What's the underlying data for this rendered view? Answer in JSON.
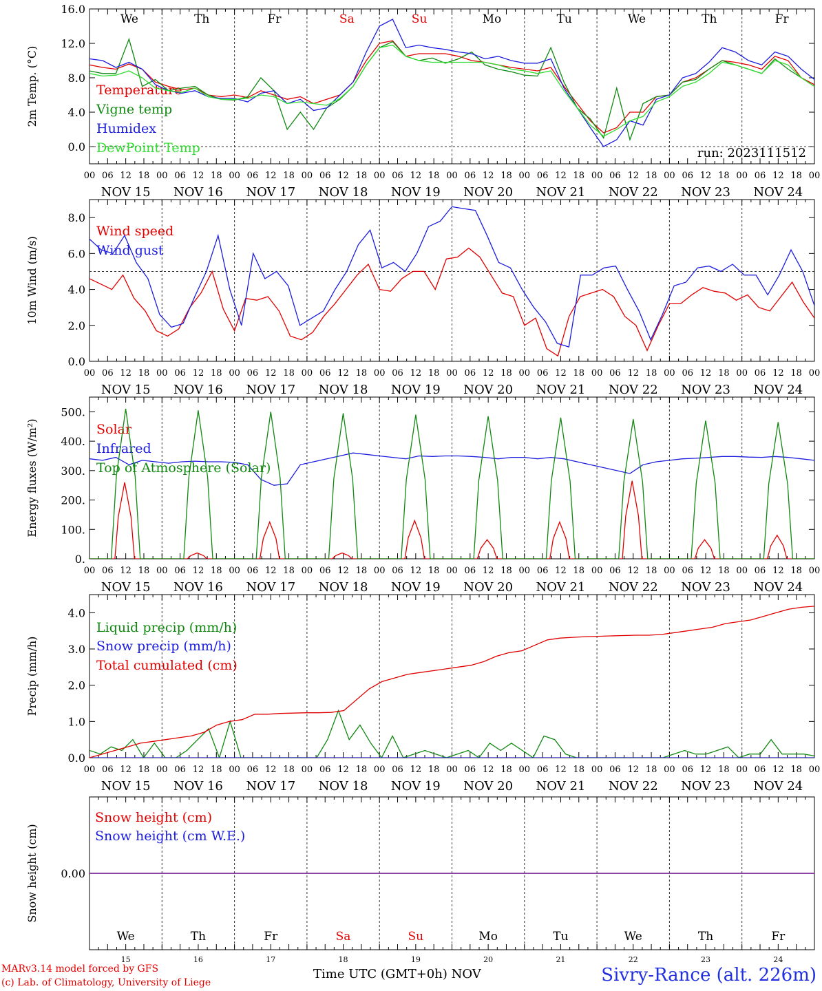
{
  "chart_data": [
    {
      "type": "line",
      "ylabel": "2m Temp. (°C)",
      "ylim": [
        -2.0,
        16.0
      ],
      "yticks": [
        "0.0",
        "4.0",
        "8.0",
        "12.0",
        "16.0"
      ],
      "yticks_values": [
        0,
        4,
        8,
        12,
        16
      ],
      "ref_line": 0,
      "annotation": "run: 2023111512",
      "weekday_labels": [
        "We",
        "Th",
        "Fr",
        "Sa",
        "Su",
        "Mo",
        "Tu",
        "We",
        "Th",
        "Fr"
      ],
      "series": [
        {
          "name": "Temperature",
          "color": "#e00000",
          "values": [
            9.5,
            9.2,
            9.0,
            9.6,
            9.0,
            7.5,
            7.0,
            6.6,
            6.8,
            6.0,
            5.8,
            6.0,
            5.7,
            6.5,
            6.0,
            5.5,
            5.8,
            5.0,
            5.5,
            6.0,
            7.5,
            10.0,
            12.0,
            12.3,
            10.5,
            10.8,
            10.8,
            10.8,
            10.5,
            10.0,
            9.8,
            9.5,
            9.2,
            9.0,
            8.8,
            9.2,
            7.0,
            5.0,
            3.0,
            1.6,
            2.2,
            4.0,
            4.0,
            5.8,
            6.0,
            7.5,
            8.0,
            9.0,
            10.0,
            9.8,
            9.5,
            9.0,
            10.5,
            10.0,
            8.0,
            7.2
          ]
        },
        {
          "name": "Vigne temp",
          "color": "#108810",
          "values": [
            8.8,
            8.5,
            8.5,
            12.5,
            7.0,
            7.8,
            6.5,
            6.8,
            7.0,
            6.0,
            5.5,
            5.4,
            5.8,
            8.0,
            6.5,
            2.0,
            4.0,
            2.0,
            4.5,
            5.5,
            7.0,
            9.5,
            11.5,
            12.2,
            10.5,
            10.0,
            10.3,
            9.7,
            10.2,
            11.0,
            9.5,
            9.0,
            8.7,
            8.3,
            8.2,
            11.5,
            7.5,
            4.5,
            3.2,
            1.0,
            6.8,
            0.8,
            5.0,
            5.8,
            6.0,
            7.5,
            7.8,
            9.0,
            10.0,
            9.5,
            9.0,
            8.5,
            10.2,
            9.0,
            8.0,
            7.0
          ]
        },
        {
          "name": "Humidex",
          "color": "#1c1cdd",
          "values": [
            10.2,
            10.0,
            9.2,
            9.8,
            9.0,
            7.2,
            6.5,
            6.2,
            6.5,
            5.8,
            5.6,
            5.6,
            5.2,
            6.2,
            6.5,
            5.0,
            5.5,
            4.2,
            4.5,
            6.0,
            7.5,
            11.0,
            14.0,
            14.8,
            11.5,
            11.8,
            11.5,
            11.3,
            11.0,
            10.8,
            10.2,
            10.5,
            10.0,
            9.7,
            9.7,
            10.2,
            6.8,
            4.5,
            2.2,
            0.0,
            0.8,
            3.0,
            2.5,
            5.5,
            6.0,
            8.0,
            8.5,
            9.8,
            11.5,
            11.0,
            10.0,
            9.5,
            11.0,
            10.5,
            9.0,
            7.8
          ]
        },
        {
          "name": "DewPoint Temp",
          "color": "#30dd30",
          "values": [
            8.5,
            8.2,
            8.3,
            8.8,
            8.0,
            6.8,
            6.5,
            6.3,
            6.8,
            5.8,
            5.5,
            5.5,
            5.6,
            6.0,
            5.8,
            5.0,
            5.2,
            5.0,
            4.8,
            5.6,
            7.0,
            9.5,
            11.5,
            11.8,
            10.5,
            10.0,
            9.8,
            9.8,
            9.8,
            9.8,
            9.8,
            9.5,
            9.0,
            8.8,
            8.5,
            8.8,
            6.5,
            4.5,
            2.5,
            1.2,
            2.0,
            3.0,
            3.5,
            5.2,
            5.8,
            7.0,
            7.5,
            8.5,
            9.8,
            9.5,
            9.0,
            8.5,
            10.0,
            9.5,
            8.0,
            7.0
          ]
        }
      ],
      "x_bottom": {
        "hour_labels": [
          "00",
          "06",
          "12",
          "18"
        ],
        "end_label": "00",
        "date_labels": [
          "NOV 15",
          "NOV 16",
          "NOV 17",
          "NOV 18",
          "NOV 19",
          "NOV 20",
          "NOV 21",
          "NOV 22",
          "NOV 23",
          "NOV 24"
        ]
      }
    },
    {
      "type": "line",
      "ylabel": "10m Wind (m/s)",
      "ylim": [
        0,
        9.0
      ],
      "yticks": [
        "0.0",
        "2.0",
        "4.0",
        "6.0",
        "8.0"
      ],
      "yticks_values": [
        0,
        2,
        4,
        6,
        8
      ],
      "ref_line": 5,
      "series": [
        {
          "name": "Wind speed",
          "color": "#e00000",
          "values": [
            4.6,
            4.3,
            4.0,
            4.8,
            3.5,
            2.8,
            1.7,
            1.4,
            1.8,
            3.0,
            3.8,
            5.0,
            2.9,
            1.7,
            3.5,
            3.4,
            3.6,
            2.8,
            1.4,
            1.2,
            1.6,
            2.5,
            3.2,
            4.0,
            4.8,
            5.4,
            4.0,
            3.9,
            4.6,
            5.0,
            5.0,
            4.0,
            5.7,
            5.8,
            6.3,
            5.8,
            4.8,
            3.8,
            3.6,
            2.0,
            2.4,
            0.7,
            0.3,
            2.5,
            3.6,
            3.8,
            4.0,
            3.6,
            2.5,
            2.0,
            0.6,
            2.0,
            3.2,
            3.2,
            3.7,
            4.1,
            3.9,
            3.8,
            3.4,
            3.7,
            3.0,
            2.8,
            3.6,
            4.4,
            3.3,
            2.4
          ]
        },
        {
          "name": "Wind gust",
          "color": "#1c1cdd",
          "values": [
            6.8,
            6.2,
            6.0,
            7.0,
            5.5,
            4.6,
            2.6,
            1.9,
            2.1,
            3.6,
            5.0,
            7.0,
            4.0,
            2.0,
            6.0,
            4.6,
            5.0,
            4.2,
            2.0,
            2.4,
            2.8,
            4.0,
            5.0,
            6.5,
            7.3,
            5.2,
            5.5,
            5.0,
            6.0,
            7.5,
            7.8,
            8.6,
            8.5,
            8.4,
            7.0,
            5.5,
            5.2,
            4.0,
            3.0,
            2.2,
            1.0,
            0.8,
            4.8,
            4.8,
            5.2,
            5.3,
            4.0,
            2.8,
            1.2,
            2.6,
            4.2,
            4.4,
            5.2,
            5.3,
            5.0,
            5.4,
            4.8,
            4.8,
            3.7,
            4.8,
            6.2,
            5.0,
            3.1
          ]
        }
      ],
      "x_bottom": {
        "hour_labels": [
          "00",
          "06",
          "12",
          "18"
        ],
        "end_label": "00",
        "date_labels": [
          "NOV 15",
          "NOV 16",
          "NOV 17",
          "NOV 18",
          "NOV 19",
          "NOV 20",
          "NOV 21",
          "NOV 22",
          "NOV 23",
          "NOV 24"
        ]
      }
    },
    {
      "type": "line",
      "ylabel": "Energy fluxes (W/m²)",
      "ylim": [
        0,
        550
      ],
      "yticks": [
        "0.",
        "100.",
        "200.",
        "300.",
        "400.",
        "500."
      ],
      "yticks_values": [
        0,
        100,
        200,
        300,
        400,
        500
      ],
      "series": [
        {
          "name": "Solar",
          "color": "#e00000",
          "daily_peaks": [
            260,
            20,
            125,
            20,
            130,
            65,
            125,
            265,
            65,
            80
          ]
        },
        {
          "name": "Infrared",
          "color": "#1c1cdd",
          "values": [
            340,
            335,
            345,
            320,
            335,
            330,
            325,
            330,
            332,
            330,
            330,
            328,
            320,
            270,
            250,
            255,
            320,
            330,
            340,
            350,
            360,
            355,
            350,
            345,
            340,
            350,
            348,
            350,
            350,
            348,
            345,
            340,
            345,
            345,
            340,
            345,
            340,
            330,
            320,
            310,
            300,
            290,
            320,
            330,
            335,
            340,
            342,
            345,
            348,
            348,
            346,
            345,
            348,
            345,
            340,
            335
          ]
        },
        {
          "name": "Top of Atmosphere (Solar)",
          "color": "#108810",
          "daily_peaks": [
            510,
            505,
            500,
            495,
            490,
            485,
            480,
            475,
            470,
            465
          ]
        }
      ],
      "x_bottom": {
        "hour_labels": [
          "00",
          "06",
          "12",
          "18"
        ],
        "end_label": "00",
        "date_labels": [
          "NOV 15",
          "NOV 16",
          "NOV 17",
          "NOV 18",
          "NOV 19",
          "NOV 20",
          "NOV 21",
          "NOV 22",
          "NOV 23",
          "NOV 24"
        ]
      }
    },
    {
      "type": "line",
      "ylabel": "Precip (mm/h)",
      "ylim": [
        0,
        4.5
      ],
      "yticks": [
        "0.0",
        "1.0",
        "2.0",
        "3.0",
        "4.0"
      ],
      "yticks_values": [
        0,
        1,
        2,
        3,
        4
      ],
      "series": [
        {
          "name": "Liquid precip (mm/h)",
          "color": "#108810",
          "values": [
            0.2,
            0.1,
            0.3,
            0.2,
            0.5,
            0.0,
            0.4,
            0.0,
            0.0,
            0.2,
            0.5,
            0.8,
            0.0,
            1.0,
            0.0,
            0.0,
            0.0,
            0.0,
            0.0,
            0.0,
            0.0,
            0.0,
            0.5,
            1.3,
            0.5,
            0.9,
            0.4,
            0.0,
            0.6,
            0.0,
            0.1,
            0.2,
            0.1,
            0.0,
            0.1,
            0.2,
            0.0,
            0.4,
            0.2,
            0.4,
            0.2,
            0.0,
            0.6,
            0.5,
            0.1,
            0.0,
            0.0,
            0.0,
            0.0,
            0.0,
            0.0,
            0.0,
            0.0,
            0.0,
            0.1,
            0.2,
            0.1,
            0.1,
            0.2,
            0.3,
            0.0,
            0.1,
            0.1,
            0.5,
            0.1,
            0.1,
            0.1,
            0.05
          ]
        },
        {
          "name": "Snow precip (mm/h)",
          "color": "#1c1cdd",
          "values": [
            0,
            0
          ]
        },
        {
          "name": "Total cumulated (cm)",
          "color": "#e00000",
          "values": [
            0.0,
            0.1,
            0.2,
            0.3,
            0.4,
            0.45,
            0.5,
            0.55,
            0.6,
            0.7,
            0.9,
            1.0,
            1.05,
            1.2,
            1.2,
            1.22,
            1.23,
            1.24,
            1.24,
            1.25,
            1.3,
            1.6,
            1.9,
            2.1,
            2.2,
            2.3,
            2.35,
            2.4,
            2.45,
            2.5,
            2.55,
            2.65,
            2.8,
            2.9,
            2.95,
            3.1,
            3.25,
            3.3,
            3.32,
            3.34,
            3.35,
            3.36,
            3.37,
            3.38,
            3.38,
            3.4,
            3.45,
            3.5,
            3.55,
            3.6,
            3.7,
            3.75,
            3.8,
            3.9,
            4.0,
            4.1,
            4.15,
            4.18
          ]
        }
      ],
      "x_bottom": {
        "hour_labels": [
          "00",
          "06",
          "12",
          "18"
        ],
        "end_label": "00",
        "date_labels": [
          "NOV 15",
          "NOV 16",
          "NOV 17",
          "NOV 18",
          "NOV 19",
          "NOV 20",
          "NOV 21",
          "NOV 22",
          "NOV 23",
          "NOV 24"
        ]
      }
    },
    {
      "type": "line",
      "ylabel": "Snow height (cm)",
      "ylim": [
        -1,
        1
      ],
      "yticks": [
        "0.00"
      ],
      "yticks_values": [
        0
      ],
      "weekday_labels": [
        "We",
        "Th",
        "Fr",
        "Sa",
        "Su",
        "Mo",
        "Tu",
        "We",
        "Th",
        "Fr"
      ],
      "day_numbers": [
        "15",
        "16",
        "17",
        "18",
        "19",
        "20",
        "21",
        "22",
        "23",
        "24"
      ],
      "series": [
        {
          "name": "Snow height (cm)",
          "color": "#e00000",
          "values": [
            0,
            0
          ]
        },
        {
          "name": "Snow height (cm W.E.)",
          "color": "#1c1cdd",
          "values": [
            0,
            0
          ]
        }
      ]
    }
  ],
  "weekend_color": "#e00000",
  "footer": {
    "model_line": "MARv3.14 model forced by GFS",
    "credit_line": "(c) Lab. of Climatology, University of Liege",
    "xlabel": "Time UTC (GMT+0h) NOV",
    "site_title": "Sivry-Rance (alt. 226m)"
  }
}
